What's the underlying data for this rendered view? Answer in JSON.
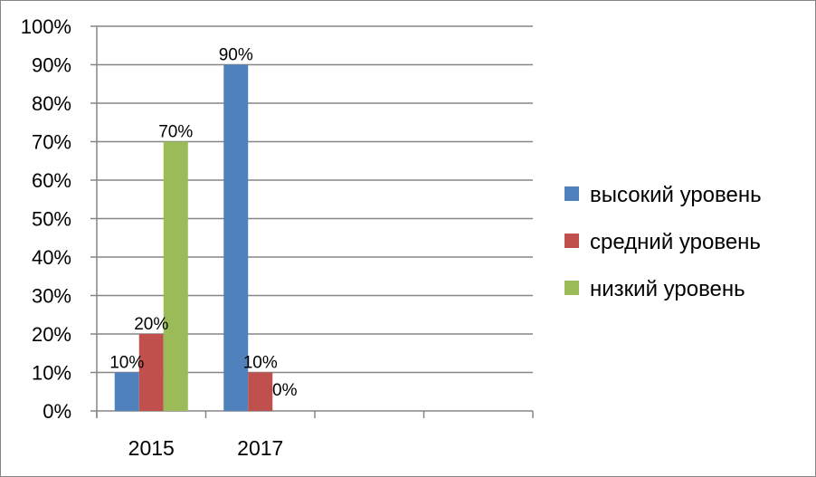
{
  "chart_data": {
    "type": "bar",
    "title": "",
    "xlabel": "",
    "ylabel": "",
    "categories": [
      "2015",
      "2017",
      "",
      ""
    ],
    "ylim": [
      0,
      100
    ],
    "ytick_labels": [
      "0%",
      "10%",
      "20%",
      "30%",
      "40%",
      "50%",
      "60%",
      "70%",
      "80%",
      "90%",
      "100%"
    ],
    "grid": true,
    "legend_position": "right",
    "series": [
      {
        "name": "высокий уровень",
        "color": "#4F81BD",
        "values": [
          10,
          90,
          null,
          null
        ],
        "labels": [
          "10%",
          "90%",
          "",
          ""
        ]
      },
      {
        "name": "средний уровень",
        "color": "#C0504D",
        "values": [
          20,
          10,
          null,
          null
        ],
        "labels": [
          "20%",
          "10%",
          "",
          ""
        ]
      },
      {
        "name": "низкий уровень",
        "color": "#9BBB59",
        "values": [
          70,
          0,
          null,
          null
        ],
        "labels": [
          "70%",
          "0%",
          "",
          ""
        ]
      }
    ]
  }
}
